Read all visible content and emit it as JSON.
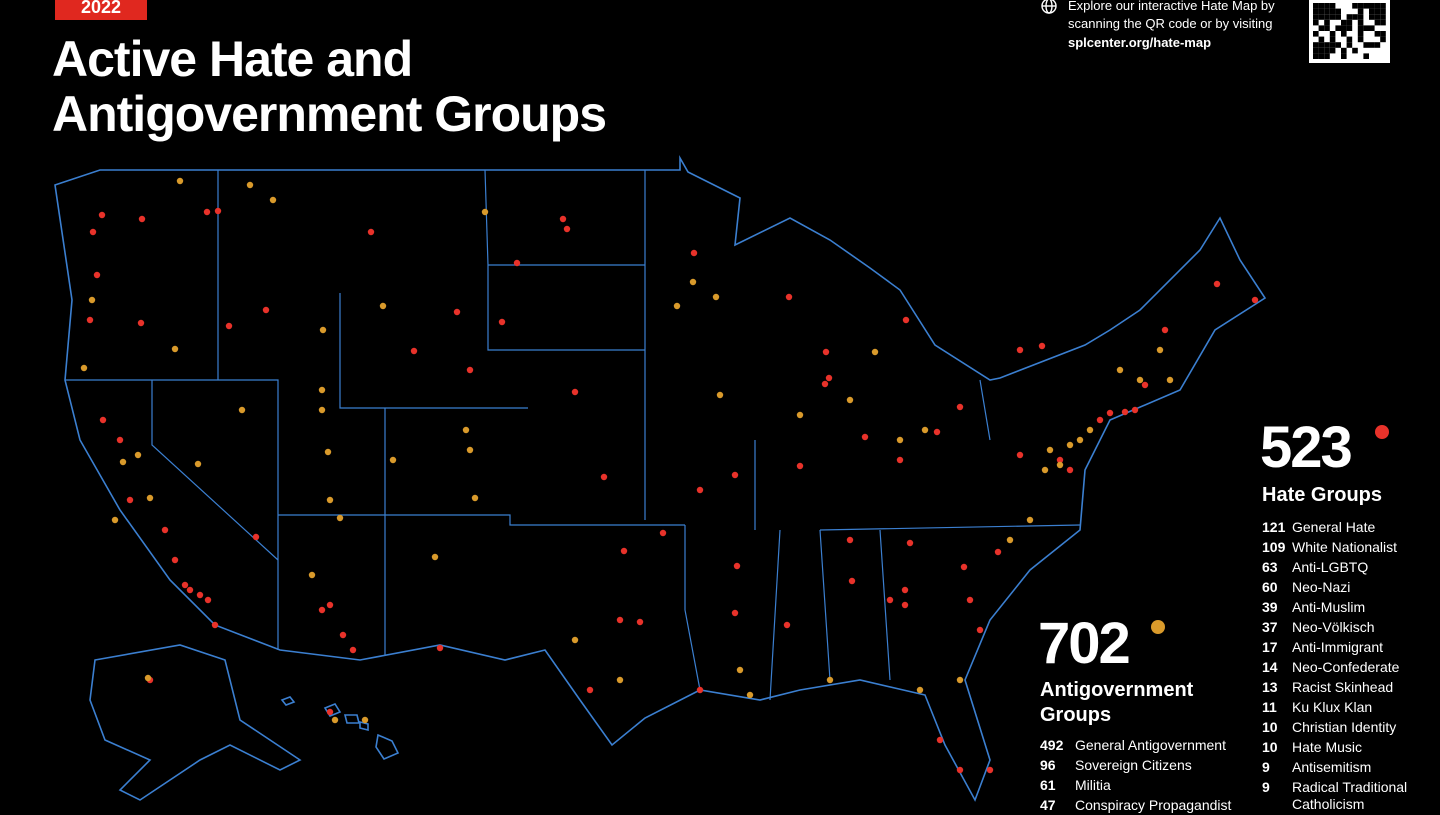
{
  "badge": "2022",
  "title": [
    "Active Hate and",
    "Antigovernment Groups"
  ],
  "qr_note": {
    "lines": [
      "Explore our interactive Hate Map by",
      "scanning the QR code or by visiting"
    ],
    "url": "splcenter.org/hate-map"
  },
  "hate": {
    "total": 523,
    "label": "Hate Groups",
    "items": [
      {
        "count": 121,
        "label": "General Hate"
      },
      {
        "count": 109,
        "label": "White Nationalist"
      },
      {
        "count": 63,
        "label": "Anti-LGBTQ"
      },
      {
        "count": 60,
        "label": "Neo-Nazi"
      },
      {
        "count": 39,
        "label": "Anti-Muslim"
      },
      {
        "count": 37,
        "label": "Neo-Völkisch"
      },
      {
        "count": 17,
        "label": "Anti-Immigrant"
      },
      {
        "count": 14,
        "label": "Neo-Confederate"
      },
      {
        "count": 13,
        "label": "Racist Skinhead"
      },
      {
        "count": 11,
        "label": "Ku Klux Klan"
      },
      {
        "count": 10,
        "label": "Christian Identity"
      },
      {
        "count": 10,
        "label": "Hate Music"
      },
      {
        "count": 9,
        "label": "Antisemitism"
      },
      {
        "count": 9,
        "label": "Radical Traditional Catholicism"
      }
    ]
  },
  "antigovernment": {
    "total": 702,
    "label": "Antigovernment Groups",
    "items": [
      {
        "count": 492,
        "label": "General Antigovernment"
      },
      {
        "count": 96,
        "label": "Sovereign Citizens"
      },
      {
        "count": 61,
        "label": "Militia"
      },
      {
        "count": 47,
        "label": "Conspiracy Propagandist"
      }
    ]
  }
}
